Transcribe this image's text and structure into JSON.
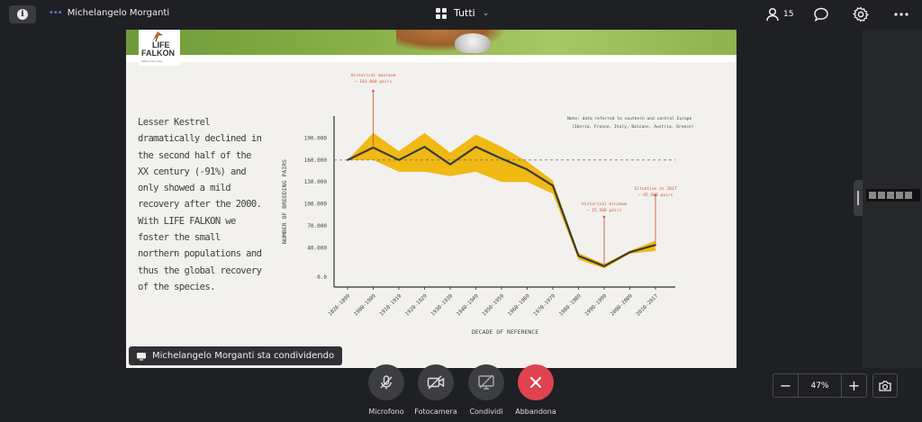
{
  "topbar": {
    "presenter_name": "Michelangelo Morganti",
    "layout_label": "Tutti",
    "participants_count": "15"
  },
  "slide": {
    "logo_line1": "LIFE",
    "logo_line2": "FALKON",
    "logo_tagline": "LIFE on the move",
    "description": "Lesser Kestrel dramatically declined in the second half of the XX century (-91%) and only showed a mild recovery after the 2000. With LIFE FALKON we foster the small northern populations and thus the global recovery of the species."
  },
  "chart_data": {
    "type": "line",
    "xlabel": "DECADE OF REFERENCE",
    "ylabel": "NUMBER OF BREEDING PAIRS",
    "ylim": [
      0,
      220000
    ],
    "yticks": [
      "0.0",
      "40.000",
      "70.000",
      "100.000",
      "130.000",
      "160.000",
      "190.000"
    ],
    "ytick_values": [
      0,
      40000,
      70000,
      100000,
      130000,
      160000,
      190000
    ],
    "categories": [
      "1826-1899",
      "1900-1909",
      "1910-1919",
      "1920-1929",
      "1930-1939",
      "1940-1949",
      "1950-1959",
      "1960-1969",
      "1970-1979",
      "1980-1989",
      "1990-1999",
      "2000-2009",
      "2010-2017"
    ],
    "series": [
      {
        "values": [
          160000,
          177000,
          160000,
          178000,
          154000,
          178000,
          162000,
          147000,
          125000,
          29000,
          15000,
          34000,
          44000
        ],
        "upper": [
          160000,
          197000,
          172000,
          197000,
          170000,
          195000,
          178000,
          158000,
          132000,
          33000,
          18000,
          36000,
          50000
        ],
        "lower": [
          160000,
          160000,
          144000,
          144000,
          138000,
          144000,
          130000,
          130000,
          114000,
          24000,
          12000,
          32000,
          36000
        ]
      }
    ],
    "reference_line": 160000,
    "line_color": "#3a3a3a",
    "band_color": "#f0b400",
    "marker_color": "#d45a3a",
    "annotations": [
      {
        "text_line1": "Historical maximum",
        "text_line2": "~ 182.000 pairs",
        "category": "1900-1909"
      },
      {
        "text_line1": "Historical minimum",
        "text_line2": "~ 15.500 pairs",
        "category": "1990-1999"
      },
      {
        "text_line1": "Situation at 2017",
        "text_line2": "~ 45.500 pairs",
        "category": "2010-2017"
      }
    ],
    "note_line1": "Note: data referred to southern and central Europe",
    "note_line2": "(Iberia, France, Italy, Balcans, Austria, Greece)"
  },
  "share_banner": "Michelangelo Morganti sta condividendo",
  "controls": {
    "mic": "Microfono",
    "camera": "Fotocamera",
    "share": "Condividi",
    "leave": "Abbandona"
  },
  "zoom": {
    "value": "47%"
  },
  "colors": {
    "leave_red": "#e04250",
    "presenter_accent": "#5a7fe0"
  }
}
